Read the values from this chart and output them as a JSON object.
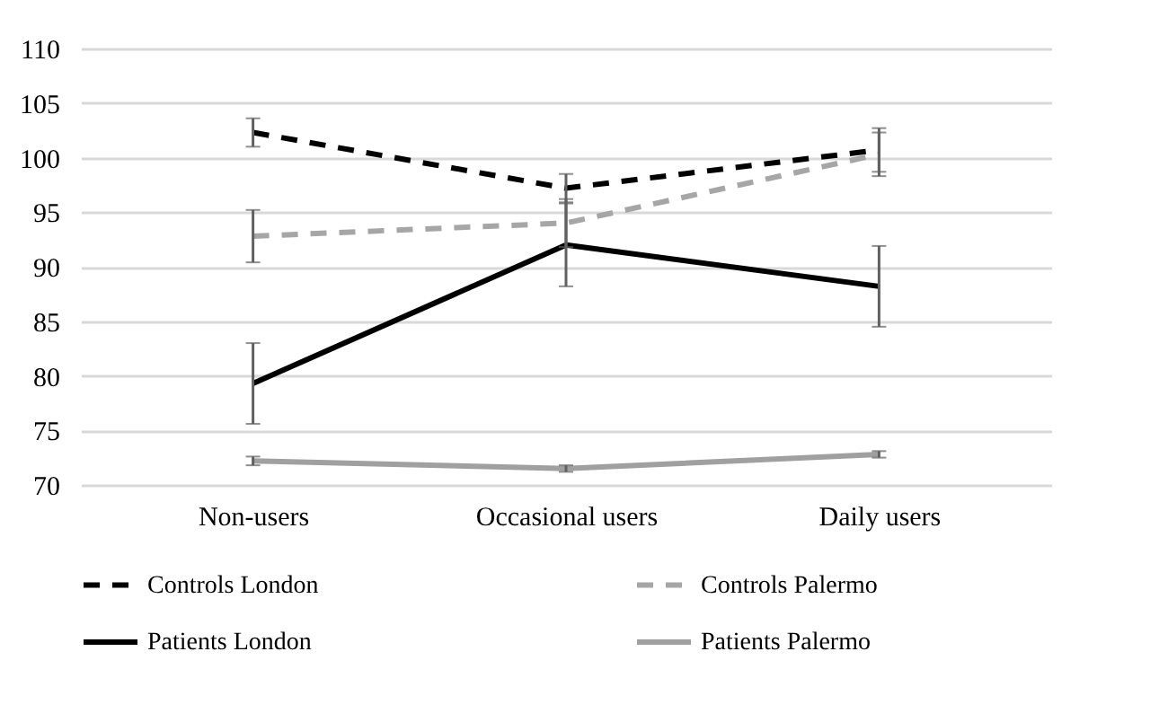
{
  "chart_data": {
    "type": "line",
    "categories": [
      "Non-users",
      "Occasional users",
      "Daily users"
    ],
    "ylim": [
      70,
      110
    ],
    "yticks": [
      70,
      75,
      80,
      85,
      90,
      95,
      100,
      105,
      110
    ],
    "grid": "y",
    "legend": "bottom",
    "marker": "none",
    "series": [
      {
        "name": "Controls London",
        "color": "#000000",
        "line_style": "dashed",
        "values": [
          102.3,
          97.2,
          100.7
        ],
        "errors": [
          1.3,
          1.3,
          2.0
        ]
      },
      {
        "name": "Controls Palermo",
        "color": "#a6a6a6",
        "line_style": "dashed",
        "values": [
          92.8,
          94.0,
          100.3
        ],
        "errors": [
          2.4,
          2.2,
          2.0
        ]
      },
      {
        "name": "Patients London",
        "color": "#000000",
        "line_style": "solid",
        "values": [
          79.3,
          92.0,
          88.2
        ],
        "errors": [
          3.7,
          3.8,
          3.7
        ]
      },
      {
        "name": "Patients Palermo",
        "color": "#a0a0a0",
        "line_style": "solid",
        "values": [
          72.2,
          71.5,
          72.8
        ],
        "errors": [
          0.4,
          0.3,
          0.3
        ]
      }
    ]
  }
}
